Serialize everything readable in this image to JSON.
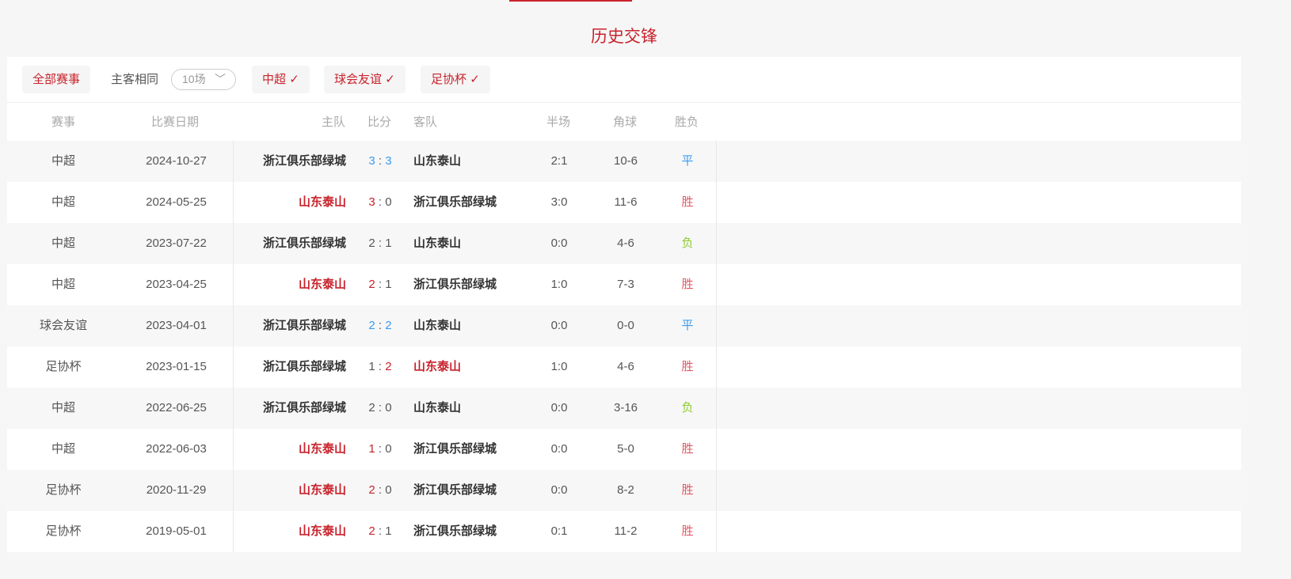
{
  "title": "历史交锋",
  "filters": {
    "all": "全部赛事",
    "same_venue": "主客相同",
    "count_select": "10场",
    "leagues": [
      "中超",
      "球会友谊",
      "足协杯"
    ],
    "check": "✓",
    "chevron": "﹀"
  },
  "columns": {
    "competition": "赛事",
    "date": "比赛日期",
    "home": "主队",
    "score": "比分",
    "away": "客队",
    "half": "半场",
    "corner": "角球",
    "result": "胜负"
  },
  "colors": {
    "accent": "#c8232c",
    "draw": "#3c9bf0",
    "loss": "#8ccc2b"
  },
  "matches": [
    {
      "competition": "中超",
      "date": "2024-10-27",
      "home": "浙江俱乐部绿城",
      "home_goals": "3",
      "away_goals": "3",
      "away": "山东泰山",
      "half": "2:1",
      "corner": "10-6",
      "result": "平",
      "home_color": "",
      "away_color": "",
      "hg_color": "blue",
      "ag_color": "blue",
      "result_color": "blue"
    },
    {
      "competition": "中超",
      "date": "2024-05-25",
      "home": "山东泰山",
      "home_goals": "3",
      "away_goals": "0",
      "away": "浙江俱乐部绿城",
      "half": "3:0",
      "corner": "11-6",
      "result": "胜",
      "home_color": "red",
      "away_color": "",
      "hg_color": "red",
      "ag_color": "",
      "result_color": "red"
    },
    {
      "competition": "中超",
      "date": "2023-07-22",
      "home": "浙江俱乐部绿城",
      "home_goals": "2",
      "away_goals": "1",
      "away": "山东泰山",
      "half": "0:0",
      "corner": "4-6",
      "result": "负",
      "home_color": "",
      "away_color": "",
      "hg_color": "",
      "ag_color": "",
      "result_color": "green"
    },
    {
      "competition": "中超",
      "date": "2023-04-25",
      "home": "山东泰山",
      "home_goals": "2",
      "away_goals": "1",
      "away": "浙江俱乐部绿城",
      "half": "1:0",
      "corner": "7-3",
      "result": "胜",
      "home_color": "red",
      "away_color": "",
      "hg_color": "red",
      "ag_color": "",
      "result_color": "red"
    },
    {
      "competition": "球会友谊",
      "date": "2023-04-01",
      "home": "浙江俱乐部绿城",
      "home_goals": "2",
      "away_goals": "2",
      "away": "山东泰山",
      "half": "0:0",
      "corner": "0-0",
      "result": "平",
      "home_color": "",
      "away_color": "",
      "hg_color": "blue",
      "ag_color": "blue",
      "result_color": "blue"
    },
    {
      "competition": "足协杯",
      "date": "2023-01-15",
      "home": "浙江俱乐部绿城",
      "home_goals": "1",
      "away_goals": "2",
      "away": "山东泰山",
      "half": "1:0",
      "corner": "4-6",
      "result": "胜",
      "home_color": "",
      "away_color": "red",
      "hg_color": "",
      "ag_color": "red",
      "result_color": "red"
    },
    {
      "competition": "中超",
      "date": "2022-06-25",
      "home": "浙江俱乐部绿城",
      "home_goals": "2",
      "away_goals": "0",
      "away": "山东泰山",
      "half": "0:0",
      "corner": "3-16",
      "result": "负",
      "home_color": "",
      "away_color": "",
      "hg_color": "",
      "ag_color": "",
      "result_color": "green"
    },
    {
      "competition": "中超",
      "date": "2022-06-03",
      "home": "山东泰山",
      "home_goals": "1",
      "away_goals": "0",
      "away": "浙江俱乐部绿城",
      "half": "0:0",
      "corner": "5-0",
      "result": "胜",
      "home_color": "red",
      "away_color": "",
      "hg_color": "red",
      "ag_color": "",
      "result_color": "red"
    },
    {
      "competition": "足协杯",
      "date": "2020-11-29",
      "home": "山东泰山",
      "home_goals": "2",
      "away_goals": "0",
      "away": "浙江俱乐部绿城",
      "half": "0:0",
      "corner": "8-2",
      "result": "胜",
      "home_color": "red",
      "away_color": "",
      "hg_color": "red",
      "ag_color": "",
      "result_color": "red"
    },
    {
      "competition": "足协杯",
      "date": "2019-05-01",
      "home": "山东泰山",
      "home_goals": "2",
      "away_goals": "1",
      "away": "浙江俱乐部绿城",
      "half": "0:1",
      "corner": "11-2",
      "result": "胜",
      "home_color": "red",
      "away_color": "",
      "hg_color": "red",
      "ag_color": "",
      "result_color": "red"
    }
  ]
}
